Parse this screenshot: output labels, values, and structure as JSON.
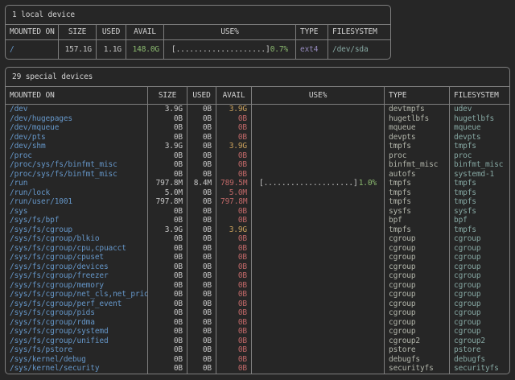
{
  "palette": {
    "bg": "#262626",
    "border": "#7e7e7e",
    "heading": "#d2d2d2",
    "text": "#c6c6c6",
    "blue": "#6596c8",
    "green": "#8cbb70",
    "yellow": "#c9a05c",
    "red": "#c06868",
    "purple": "#978cc0",
    "teal": "#86a8a3",
    "type-gray": "#b2b5aa"
  },
  "local": {
    "title": "1 local device",
    "columns": [
      "MOUNTED ON",
      "SIZE",
      "USED",
      "AVAIL",
      "USE%",
      "TYPE",
      "FILESYSTEM"
    ],
    "rows": [
      {
        "mount": "/",
        "size": "157.1G",
        "used": "1.1G",
        "avail": "148.0G",
        "avail_level": "green",
        "bar": "[....................]",
        "pct": "0.7%",
        "type": "ext4",
        "fs": "/dev/sda"
      }
    ]
  },
  "special": {
    "title": "29 special devices",
    "columns": [
      "MOUNTED ON",
      "SIZE",
      "USED",
      "AVAIL",
      "USE%",
      "TYPE",
      "FILESYSTEM"
    ],
    "rows": [
      {
        "mount": "/dev",
        "size": "3.9G",
        "used": "0B",
        "avail": "3.9G",
        "avail_level": "yellow",
        "type": "devtmpfs",
        "fs": "udev"
      },
      {
        "mount": "/dev/hugepages",
        "size": "0B",
        "used": "0B",
        "avail": "0B",
        "avail_level": "red",
        "type": "hugetlbfs",
        "fs": "hugetlbfs"
      },
      {
        "mount": "/dev/mqueue",
        "size": "0B",
        "used": "0B",
        "avail": "0B",
        "avail_level": "red",
        "type": "mqueue",
        "fs": "mqueue"
      },
      {
        "mount": "/dev/pts",
        "size": "0B",
        "used": "0B",
        "avail": "0B",
        "avail_level": "red",
        "type": "devpts",
        "fs": "devpts"
      },
      {
        "mount": "/dev/shm",
        "size": "3.9G",
        "used": "0B",
        "avail": "3.9G",
        "avail_level": "yellow",
        "type": "tmpfs",
        "fs": "tmpfs"
      },
      {
        "mount": "/proc",
        "size": "0B",
        "used": "0B",
        "avail": "0B",
        "avail_level": "red",
        "type": "proc",
        "fs": "proc"
      },
      {
        "mount": "/proc/sys/fs/binfmt_misc",
        "size": "0B",
        "used": "0B",
        "avail": "0B",
        "avail_level": "red",
        "type": "binfmt_misc",
        "fs": "binfmt_misc"
      },
      {
        "mount": "/proc/sys/fs/binfmt_misc",
        "size": "0B",
        "used": "0B",
        "avail": "0B",
        "avail_level": "red",
        "type": "autofs",
        "fs": "systemd-1"
      },
      {
        "mount": "/run",
        "size": "797.8M",
        "used": "8.4M",
        "avail": "789.5M",
        "avail_level": "red",
        "bar": "[....................]",
        "pct": "1.0%",
        "type": "tmpfs",
        "fs": "tmpfs"
      },
      {
        "mount": "/run/lock",
        "size": "5.0M",
        "used": "0B",
        "avail": "5.0M",
        "avail_level": "red",
        "type": "tmpfs",
        "fs": "tmpfs"
      },
      {
        "mount": "/run/user/1001",
        "size": "797.8M",
        "used": "0B",
        "avail": "797.8M",
        "avail_level": "red",
        "type": "tmpfs",
        "fs": "tmpfs"
      },
      {
        "mount": "/sys",
        "size": "0B",
        "used": "0B",
        "avail": "0B",
        "avail_level": "red",
        "type": "sysfs",
        "fs": "sysfs"
      },
      {
        "mount": "/sys/fs/bpf",
        "size": "0B",
        "used": "0B",
        "avail": "0B",
        "avail_level": "red",
        "type": "bpf",
        "fs": "bpf"
      },
      {
        "mount": "/sys/fs/cgroup",
        "size": "3.9G",
        "used": "0B",
        "avail": "3.9G",
        "avail_level": "yellow",
        "type": "tmpfs",
        "fs": "tmpfs"
      },
      {
        "mount": "/sys/fs/cgroup/blkio",
        "size": "0B",
        "used": "0B",
        "avail": "0B",
        "avail_level": "red",
        "type": "cgroup",
        "fs": "cgroup"
      },
      {
        "mount": "/sys/fs/cgroup/cpu,cpuacct",
        "size": "0B",
        "used": "0B",
        "avail": "0B",
        "avail_level": "red",
        "type": "cgroup",
        "fs": "cgroup"
      },
      {
        "mount": "/sys/fs/cgroup/cpuset",
        "size": "0B",
        "used": "0B",
        "avail": "0B",
        "avail_level": "red",
        "type": "cgroup",
        "fs": "cgroup"
      },
      {
        "mount": "/sys/fs/cgroup/devices",
        "size": "0B",
        "used": "0B",
        "avail": "0B",
        "avail_level": "red",
        "type": "cgroup",
        "fs": "cgroup"
      },
      {
        "mount": "/sys/fs/cgroup/freezer",
        "size": "0B",
        "used": "0B",
        "avail": "0B",
        "avail_level": "red",
        "type": "cgroup",
        "fs": "cgroup"
      },
      {
        "mount": "/sys/fs/cgroup/memory",
        "size": "0B",
        "used": "0B",
        "avail": "0B",
        "avail_level": "red",
        "type": "cgroup",
        "fs": "cgroup"
      },
      {
        "mount": "/sys/fs/cgroup/net_cls,net_prio",
        "size": "0B",
        "used": "0B",
        "avail": "0B",
        "avail_level": "red",
        "type": "cgroup",
        "fs": "cgroup"
      },
      {
        "mount": "/sys/fs/cgroup/perf_event",
        "size": "0B",
        "used": "0B",
        "avail": "0B",
        "avail_level": "red",
        "type": "cgroup",
        "fs": "cgroup"
      },
      {
        "mount": "/sys/fs/cgroup/pids",
        "size": "0B",
        "used": "0B",
        "avail": "0B",
        "avail_level": "red",
        "type": "cgroup",
        "fs": "cgroup"
      },
      {
        "mount": "/sys/fs/cgroup/rdma",
        "size": "0B",
        "used": "0B",
        "avail": "0B",
        "avail_level": "red",
        "type": "cgroup",
        "fs": "cgroup"
      },
      {
        "mount": "/sys/fs/cgroup/systemd",
        "size": "0B",
        "used": "0B",
        "avail": "0B",
        "avail_level": "red",
        "type": "cgroup",
        "fs": "cgroup"
      },
      {
        "mount": "/sys/fs/cgroup/unified",
        "size": "0B",
        "used": "0B",
        "avail": "0B",
        "avail_level": "red",
        "type": "cgroup2",
        "fs": "cgroup2"
      },
      {
        "mount": "/sys/fs/pstore",
        "size": "0B",
        "used": "0B",
        "avail": "0B",
        "avail_level": "red",
        "type": "pstore",
        "fs": "pstore"
      },
      {
        "mount": "/sys/kernel/debug",
        "size": "0B",
        "used": "0B",
        "avail": "0B",
        "avail_level": "red",
        "type": "debugfs",
        "fs": "debugfs"
      },
      {
        "mount": "/sys/kernel/security",
        "size": "0B",
        "used": "0B",
        "avail": "0B",
        "avail_level": "red",
        "type": "securityfs",
        "fs": "securityfs"
      }
    ]
  }
}
